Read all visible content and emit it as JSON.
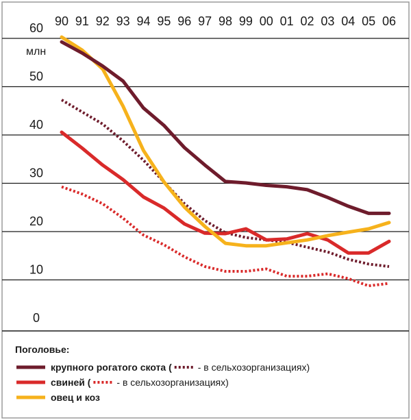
{
  "chart_data": {
    "type": "line",
    "unit_label": "млн",
    "x": [
      "90",
      "91",
      "92",
      "93",
      "94",
      "95",
      "96",
      "97",
      "98",
      "99",
      "00",
      "01",
      "02",
      "03",
      "04",
      "05",
      "06"
    ],
    "ylim": [
      0,
      60
    ],
    "yticks": [
      0,
      10,
      20,
      30,
      40,
      50,
      60
    ],
    "grid": true,
    "series": [
      {
        "key": "cattle",
        "color": "#6e1c2c",
        "style": "solid",
        "values": [
          57.0,
          54.7,
          52.0,
          48.9,
          43.3,
          39.7,
          35.1,
          31.5,
          28.1,
          27.8,
          27.3,
          27.0,
          26.4,
          24.8,
          23.0,
          21.5,
          21.5
        ]
      },
      {
        "key": "cattle_agri",
        "color": "#6e1c2c",
        "style": "dotted",
        "values": [
          45.0,
          42.5,
          40.0,
          36.5,
          32.5,
          28.0,
          23.5,
          20.0,
          17.5,
          16.5,
          16.0,
          15.5,
          14.5,
          13.5,
          12.0,
          11.0,
          10.5
        ]
      },
      {
        "key": "pigs",
        "color": "#d92a2a",
        "style": "solid",
        "values": [
          38.3,
          35.0,
          31.5,
          28.5,
          24.9,
          22.6,
          19.3,
          17.4,
          17.3,
          18.3,
          16.0,
          16.2,
          17.3,
          16.0,
          13.3,
          13.3,
          15.7
        ]
      },
      {
        "key": "pigs_agri",
        "color": "#d92a2a",
        "style": "dotted",
        "values": [
          27.0,
          25.5,
          23.5,
          20.5,
          17.0,
          15.0,
          12.5,
          10.5,
          9.5,
          9.5,
          10.0,
          8.5,
          8.5,
          9.0,
          8.0,
          6.5,
          7.0
        ]
      },
      {
        "key": "sheep_goats",
        "color": "#f6b21c",
        "style": "solid",
        "values": [
          58.0,
          55.3,
          51.4,
          43.7,
          34.5,
          28.0,
          22.8,
          18.8,
          15.3,
          14.8,
          14.8,
          15.4,
          16.0,
          16.9,
          17.6,
          18.3,
          19.6
        ]
      }
    ],
    "legend": {
      "title": "Поголовье:",
      "items": [
        {
          "label": "крупного рогатого скота (",
          "sub": "- в сельхозорганизациях)",
          "color": "#6e1c2c"
        },
        {
          "label": "свиней (",
          "sub": "- в сельхозорганизациях)",
          "color": "#d92a2a"
        },
        {
          "label": "овец и коз",
          "sub": "",
          "color": "#f6b21c"
        }
      ]
    }
  }
}
